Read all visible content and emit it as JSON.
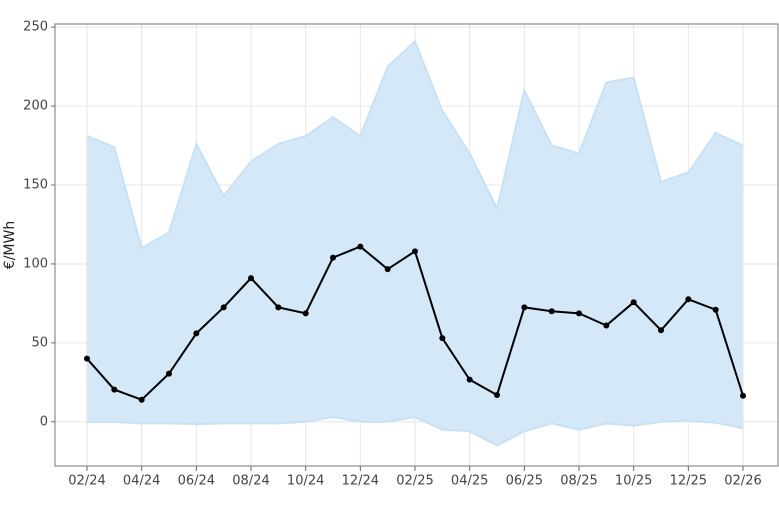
{
  "chart_data": {
    "type": "line-band",
    "y_label": "€/MWh",
    "categories": [
      "02/24",
      null,
      "04/24",
      null,
      "06/24",
      null,
      "08/24",
      null,
      "10/24",
      null,
      "12/24",
      null,
      "02/25",
      null,
      "04/25",
      null,
      "06/25",
      null,
      "08/25",
      null,
      "10/25",
      null,
      "12/25",
      null,
      "02/26"
    ],
    "series": [
      {
        "role": "line",
        "color": "#000000",
        "values": [
          40,
          20.4,
          14,
          30.5,
          56,
          72.5,
          91,
          72.5,
          68.7,
          104,
          111,
          96.7,
          108,
          53,
          26.7,
          17,
          72.5,
          70,
          68.7,
          61,
          75.7,
          58,
          77.6,
          71,
          16.5
        ]
      },
      {
        "role": "upper",
        "color": "#c8e1f5",
        "values": [
          181,
          174,
          110,
          120,
          176,
          143,
          165,
          176,
          181,
          193,
          181,
          225,
          241,
          197,
          170,
          135,
          210,
          175,
          170,
          215,
          218,
          152,
          158,
          183,
          175
        ]
      },
      {
        "role": "lower",
        "color": "#c8e1f5",
        "values": [
          0,
          0,
          -1,
          -1,
          -1.5,
          -1,
          -1,
          -1,
          0,
          3,
          0,
          0,
          3,
          -5,
          -6,
          -15,
          -6,
          -1,
          -5,
          -1,
          -2.5,
          0,
          0.5,
          -0.5,
          -4
        ]
      }
    ],
    "band_fill": "#d4e8f7",
    "ylim": [
      -28,
      252
    ],
    "yticks": [
      0,
      50,
      100,
      150,
      200,
      250
    ],
    "grid": true
  }
}
